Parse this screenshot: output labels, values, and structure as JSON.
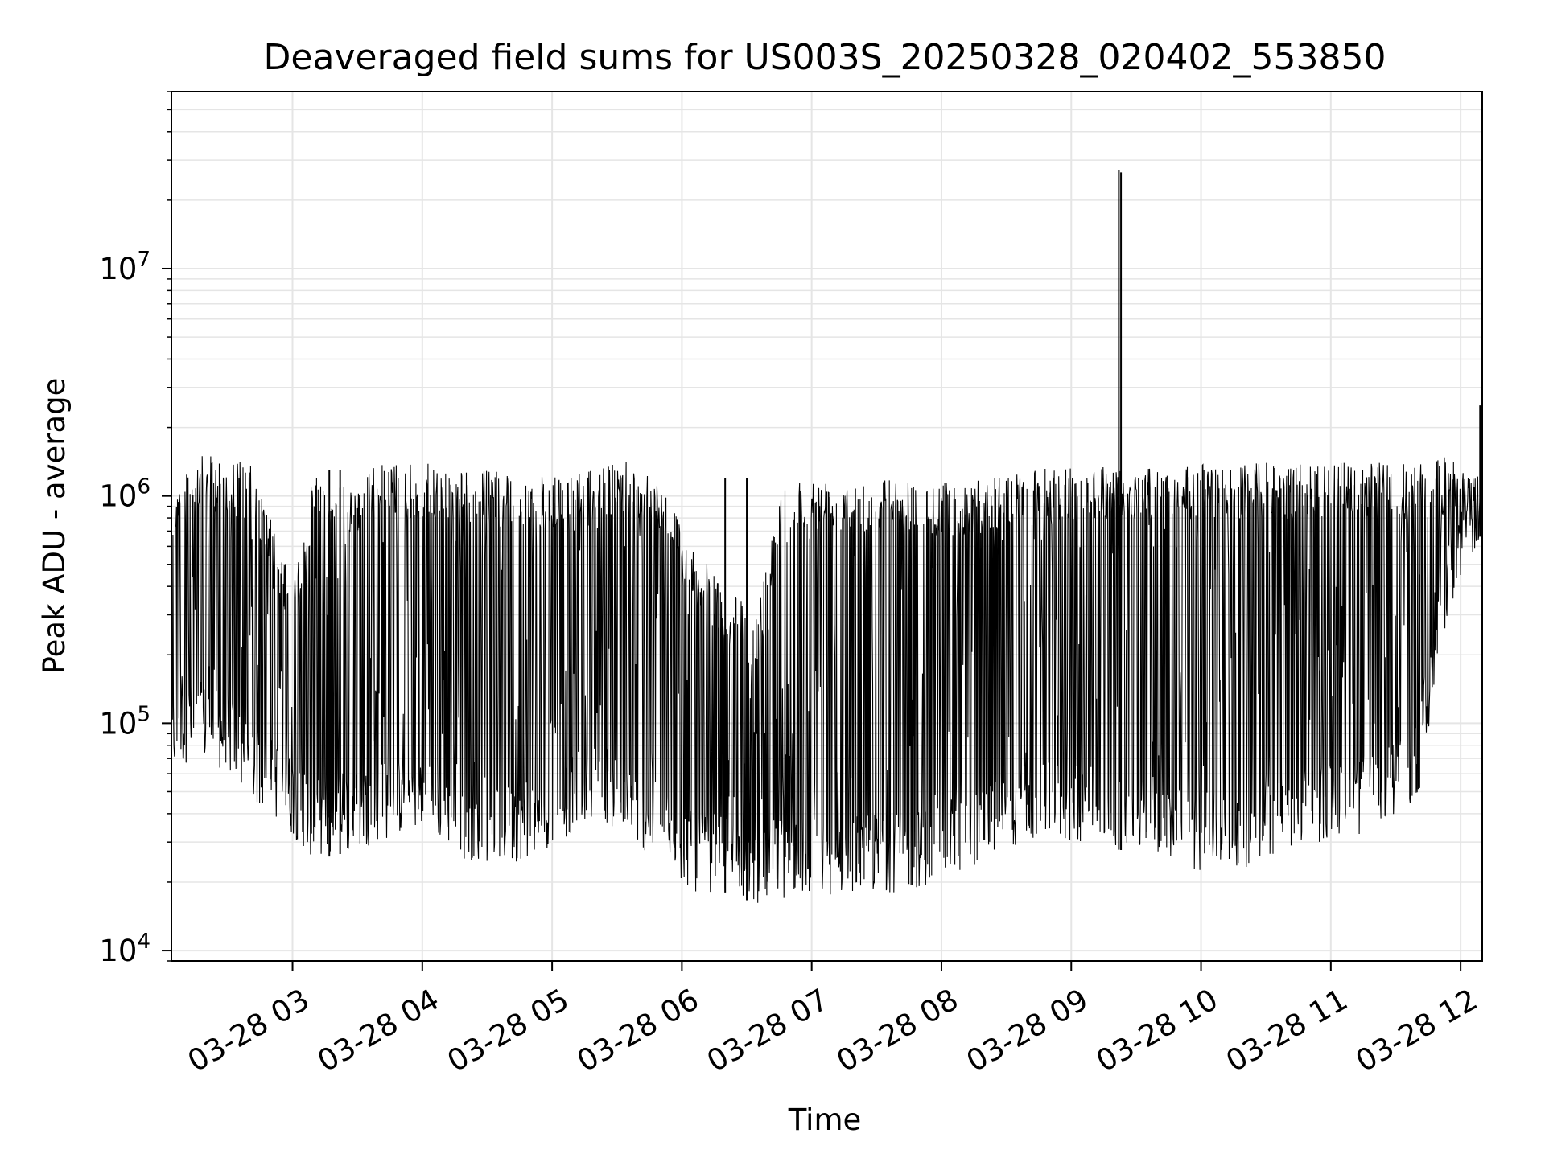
{
  "chart_data": {
    "type": "line",
    "title": "Deaveraged field sums for US003S_20250328_020402_553850",
    "xlabel": "Time",
    "ylabel": "Peak ADU - average",
    "y_scale": "log",
    "ylim": [
      9000,
      60000000
    ],
    "xlim": [
      "2025-03-28 02:04",
      "2025-03-28 12:10"
    ],
    "grid": true,
    "line_color": "#000000",
    "grid_color": "#e5e5e5",
    "x_ticks": [
      {
        "value": "2025-03-28 03:00",
        "label": "03-28 03"
      },
      {
        "value": "2025-03-28 04:00",
        "label": "03-28 04"
      },
      {
        "value": "2025-03-28 05:00",
        "label": "03-28 05"
      },
      {
        "value": "2025-03-28 06:00",
        "label": "03-28 06"
      },
      {
        "value": "2025-03-28 07:00",
        "label": "03-28 07"
      },
      {
        "value": "2025-03-28 08:00",
        "label": "03-28 08"
      },
      {
        "value": "2025-03-28 09:00",
        "label": "03-28 09"
      },
      {
        "value": "2025-03-28 10:00",
        "label": "03-28 10"
      },
      {
        "value": "2025-03-28 11:00",
        "label": "03-28 11"
      },
      {
        "value": "2025-03-28 12:00",
        "label": "03-28 12"
      }
    ],
    "y_ticks": [
      {
        "value": 10000,
        "base": "10",
        "exp": "4"
      },
      {
        "value": 100000,
        "base": "10",
        "exp": "5"
      },
      {
        "value": 1000000,
        "base": "10",
        "exp": "6"
      },
      {
        "value": 10000000,
        "base": "10",
        "exp": "7"
      }
    ],
    "series_envelope": [
      {
        "x": "2025-03-28 02:04",
        "high": 1100000,
        "low": 60000
      },
      {
        "x": "2025-03-28 02:15",
        "high": 1500000,
        "low": 70000
      },
      {
        "x": "2025-03-28 02:30",
        "high": 1500000,
        "low": 60000
      },
      {
        "x": "2025-03-28 02:40",
        "high": 1400000,
        "low": 45000
      },
      {
        "x": "2025-03-28 02:50",
        "high": 800000,
        "low": 40000
      },
      {
        "x": "2025-03-28 03:00",
        "high": 400000,
        "low": 32000
      },
      {
        "x": "2025-03-28 03:10",
        "high": 1300000,
        "low": 25000
      },
      {
        "x": "2025-03-28 03:25",
        "high": 1100000,
        "low": 27000
      },
      {
        "x": "2025-03-28 03:40",
        "high": 1400000,
        "low": 30000
      },
      {
        "x": "2025-03-28 04:00",
        "high": 1400000,
        "low": 35000
      },
      {
        "x": "2025-03-28 04:20",
        "high": 1300000,
        "low": 25000
      },
      {
        "x": "2025-03-28 04:40",
        "high": 1300000,
        "low": 24000
      },
      {
        "x": "2025-03-28 05:00",
        "high": 1200000,
        "low": 28000
      },
      {
        "x": "2025-03-28 05:20",
        "high": 1300000,
        "low": 40000
      },
      {
        "x": "2025-03-28 05:35",
        "high": 1500000,
        "low": 30000
      },
      {
        "x": "2025-03-28 05:50",
        "high": 1200000,
        "low": 25000
      },
      {
        "x": "2025-03-28 06:05",
        "high": 600000,
        "low": 18000
      },
      {
        "x": "2025-03-28 06:20",
        "high": 400000,
        "low": 18000
      },
      {
        "x": "2025-03-28 06:35",
        "high": 300000,
        "low": 16000
      },
      {
        "x": "2025-03-28 06:45",
        "high": 1200000,
        "low": 17000
      },
      {
        "x": "2025-03-28 07:00",
        "high": 1200000,
        "low": 17000
      },
      {
        "x": "2025-03-28 07:20",
        "high": 1250000,
        "low": 18000
      },
      {
        "x": "2025-03-28 07:40",
        "high": 1200000,
        "low": 18000
      },
      {
        "x": "2025-03-28 08:00",
        "high": 1150000,
        "low": 20000
      },
      {
        "x": "2025-03-28 08:20",
        "high": 1200000,
        "low": 25000
      },
      {
        "x": "2025-03-28 08:40",
        "high": 1300000,
        "low": 30000
      },
      {
        "x": "2025-03-28 09:00",
        "high": 1350000,
        "low": 30000
      },
      {
        "x": "2025-03-28 09:20",
        "high": 1400000,
        "low": 28000
      },
      {
        "x": "2025-03-28 09:40",
        "high": 1300000,
        "low": 26000
      },
      {
        "x": "2025-03-28 10:00",
        "high": 1400000,
        "low": 22000
      },
      {
        "x": "2025-03-28 10:20",
        "high": 1400000,
        "low": 23000
      },
      {
        "x": "2025-03-28 10:40",
        "high": 1400000,
        "low": 28000
      },
      {
        "x": "2025-03-28 11:00",
        "high": 1400000,
        "low": 30000
      },
      {
        "x": "2025-03-28 11:20",
        "high": 1400000,
        "low": 33000
      },
      {
        "x": "2025-03-28 11:40",
        "high": 1400000,
        "low": 45000
      },
      {
        "x": "2025-03-28 11:55",
        "high": 1500000,
        "low": 300000
      },
      {
        "x": "2025-03-28 12:10",
        "high": 1200000,
        "low": 700000
      }
    ],
    "spikes": [
      {
        "x": "2025-03-28 09:22",
        "y": 27000000
      },
      {
        "x": "2025-03-28 09:23",
        "y": 26500000
      },
      {
        "x": "2025-03-28 12:09",
        "y": 2500000
      },
      {
        "x": "2025-03-28 06:20",
        "y": 1200000
      },
      {
        "x": "2025-03-28 06:30",
        "y": 1200000
      },
      {
        "x": "2025-03-28 03:17",
        "y": 1300000
      },
      {
        "x": "2025-03-28 03:22",
        "y": 1300000
      }
    ]
  }
}
